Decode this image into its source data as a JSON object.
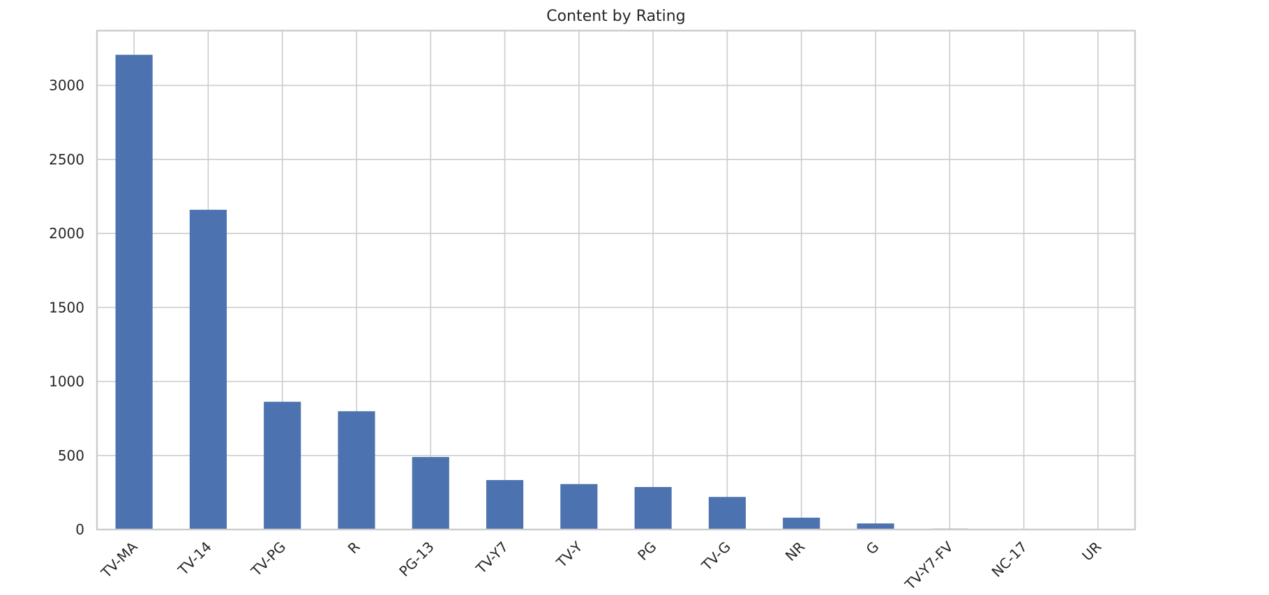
{
  "chart_data": {
    "type": "bar",
    "title": "Content by Rating",
    "xlabel": "",
    "ylabel": "",
    "categories": [
      "TV-MA",
      "TV-14",
      "TV-PG",
      "R",
      "PG-13",
      "TV-Y7",
      "TV-Y",
      "PG",
      "TV-G",
      "NR",
      "G",
      "TV-Y7-FV",
      "NC-17",
      "UR"
    ],
    "values": [
      3207,
      2160,
      863,
      799,
      490,
      334,
      307,
      287,
      220,
      80,
      41,
      6,
      3,
      3
    ],
    "ylim": [
      0,
      3370
    ],
    "yticks": [
      0,
      500,
      1000,
      1500,
      2000,
      2500,
      3000
    ],
    "grid": true,
    "legend": "none",
    "bar_color": "#4c72b0",
    "grid_color": "#cccccc",
    "text_color": "#262626"
  }
}
